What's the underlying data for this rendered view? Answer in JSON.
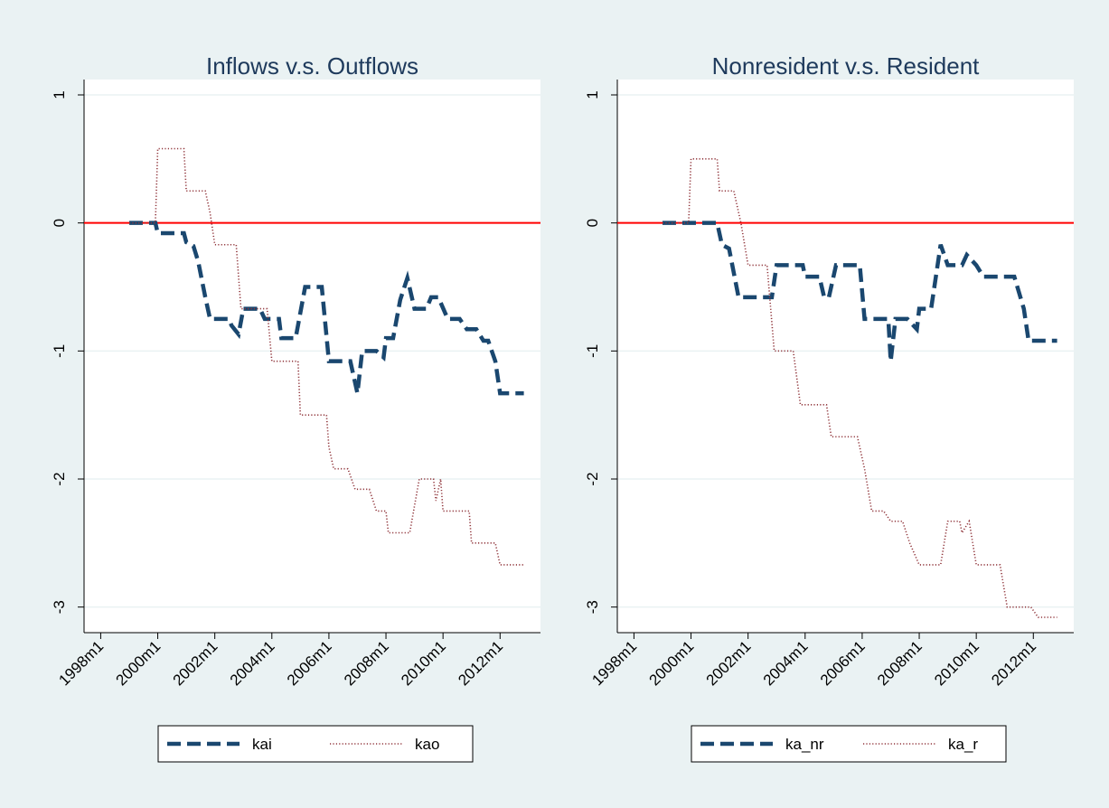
{
  "chart_data": [
    {
      "type": "line",
      "title": "Inflows v.s. Outflows",
      "x": [
        "1999m1",
        "1999m12",
        "2000m1",
        "2000m12",
        "2001m1",
        "2001m4",
        "2001m6",
        "2001m9",
        "2001m11",
        "2002m7",
        "2002m8",
        "2002m11",
        "2003m1",
        "2003m8",
        "2003m10",
        "2004m4",
        "2004m5",
        "2004m11",
        "2005m3",
        "2005m10",
        "2006m1",
        "2006m10",
        "2007m1",
        "2007m3",
        "2007m9",
        "2007m12",
        "2008m1",
        "2008m4",
        "2008m7",
        "2008m10",
        "2009m1",
        "2009m6",
        "2009m8",
        "2009m11",
        "2010m3",
        "2010m8",
        "2010m11",
        "2011m3",
        "2011m6",
        "2011m8",
        "2011m11",
        "2012m1",
        "2012m11"
      ],
      "series": [
        {
          "name": "kai",
          "color": "#1a476f",
          "style": "dash",
          "values": [
            0,
            0,
            -0.08,
            -0.08,
            -0.15,
            -0.18,
            -0.3,
            -0.58,
            -0.75,
            -0.75,
            -0.8,
            -0.87,
            -0.67,
            -0.67,
            -0.75,
            -0.75,
            -0.9,
            -0.9,
            -0.5,
            -0.5,
            -1.08,
            -1.08,
            -1.33,
            -1.0,
            -1.0,
            -1.05,
            -0.9,
            -0.9,
            -0.6,
            -0.43,
            -0.67,
            -0.67,
            -0.58,
            -0.58,
            -0.75,
            -0.75,
            -0.83,
            -0.83,
            -0.92,
            -0.92,
            -1.08,
            -1.33,
            -1.33
          ]
        }
      ],
      "x2": [
        "1999m1",
        "1999m12",
        "2000m1",
        "2000m12",
        "2001m1",
        "2001m9",
        "2001m11",
        "2002m1",
        "2002m10",
        "2002m12",
        "2003m11",
        "2004m1",
        "2004m12",
        "2005m1",
        "2005m12",
        "2006m1",
        "2006m3",
        "2006m9",
        "2006m12",
        "2007m6",
        "2007m9",
        "2008m1",
        "2008m2",
        "2008m11",
        "2009m3",
        "2009m9",
        "2009m10",
        "2009m12",
        "2010m1",
        "2010m12",
        "2011m1",
        "2011m11",
        "2012m1",
        "2012m11"
      ],
      "series2": [
        {
          "name": "kao",
          "color": "#90353b",
          "style": "dot",
          "values": [
            0,
            0,
            0.58,
            0.58,
            0.25,
            0.25,
            0.08,
            -0.17,
            -0.17,
            -0.67,
            -0.67,
            -1.08,
            -1.08,
            -1.5,
            -1.5,
            -1.75,
            -1.92,
            -1.92,
            -2.08,
            -2.08,
            -2.25,
            -2.25,
            -2.42,
            -2.42,
            -2.0,
            -2.0,
            -2.17,
            -2.0,
            -2.25,
            -2.25,
            -2.5,
            -2.5,
            -2.67,
            -2.67
          ]
        }
      ],
      "xlim": [
        "1997m6",
        "2013m6"
      ],
      "xticks": [
        "1998m1",
        "2000m1",
        "2002m1",
        "2004m1",
        "2006m1",
        "2008m1",
        "2010m1",
        "2012m1"
      ],
      "ylim": [
        -3.2,
        1.12
      ],
      "yticks": [
        -3,
        -2,
        -1,
        0,
        1
      ],
      "grid": true,
      "hline": 0,
      "hline_color": "#ff0000",
      "legend": "bottom"
    },
    {
      "type": "line",
      "title": "Nonresident v.s. Resident",
      "x": [
        "1999m1",
        "2000m12",
        "2001m2",
        "2001m5",
        "2001m9",
        "2002m11",
        "2003m1",
        "2003m12",
        "2004m1",
        "2004m7",
        "2004m9",
        "2004m11",
        "2005m2",
        "2005m12",
        "2006m2",
        "2006m12",
        "2007m1",
        "2007m3",
        "2007m8",
        "2007m12",
        "2008m1",
        "2008m6",
        "2008m10",
        "2009m1",
        "2009m7",
        "2009m9",
        "2010m1",
        "2010m4",
        "2011m5",
        "2011m9",
        "2011m11",
        "2012m11"
      ],
      "series": [
        {
          "name": "ka_nr",
          "color": "#1a476f",
          "style": "dash",
          "values": [
            0,
            0,
            -0.17,
            -0.2,
            -0.58,
            -0.58,
            -0.33,
            -0.33,
            -0.42,
            -0.42,
            -0.58,
            -0.58,
            -0.33,
            -0.33,
            -0.75,
            -0.75,
            -1.08,
            -0.75,
            -0.75,
            -0.83,
            -0.67,
            -0.67,
            -0.17,
            -0.33,
            -0.33,
            -0.25,
            -0.33,
            -0.42,
            -0.42,
            -0.67,
            -0.92,
            -0.92
          ]
        }
      ],
      "x2": [
        "1999m1",
        "1999m12",
        "2000m1",
        "2000m12",
        "2001m1",
        "2001m7",
        "2001m10",
        "2002m1",
        "2002m9",
        "2002m12",
        "2003m8",
        "2003m11",
        "2004m10",
        "2004m12",
        "2005m11",
        "2006m2",
        "2006m5",
        "2006m10",
        "2007m1",
        "2007m6",
        "2007m9",
        "2008m1",
        "2008m10",
        "2009m1",
        "2009m6",
        "2009m7",
        "2009m10",
        "2010m1",
        "2010m11",
        "2011m2",
        "2011m12",
        "2012m3",
        "2012m11"
      ],
      "series2": [
        {
          "name": "ka_r",
          "color": "#90353b",
          "style": "dot",
          "values": [
            0,
            0,
            0.5,
            0.5,
            0.25,
            0.25,
            0.0,
            -0.33,
            -0.33,
            -1.0,
            -1.0,
            -1.42,
            -1.42,
            -1.67,
            -1.67,
            -1.92,
            -2.25,
            -2.25,
            -2.33,
            -2.33,
            -2.5,
            -2.67,
            -2.67,
            -2.33,
            -2.33,
            -2.42,
            -2.33,
            -2.67,
            -2.67,
            -3.0,
            -3.0,
            -3.08,
            -3.08
          ]
        }
      ],
      "xlim": [
        "1997m6",
        "2013m6"
      ],
      "xticks": [
        "1998m1",
        "2000m1",
        "2002m1",
        "2004m1",
        "2006m1",
        "2008m1",
        "2010m1",
        "2012m1"
      ],
      "ylim": [
        -3.2,
        1.12
      ],
      "yticks": [
        -3,
        -2,
        -1,
        0,
        1
      ],
      "grid": true,
      "hline": 0,
      "hline_color": "#ff0000",
      "legend": "bottom"
    }
  ]
}
